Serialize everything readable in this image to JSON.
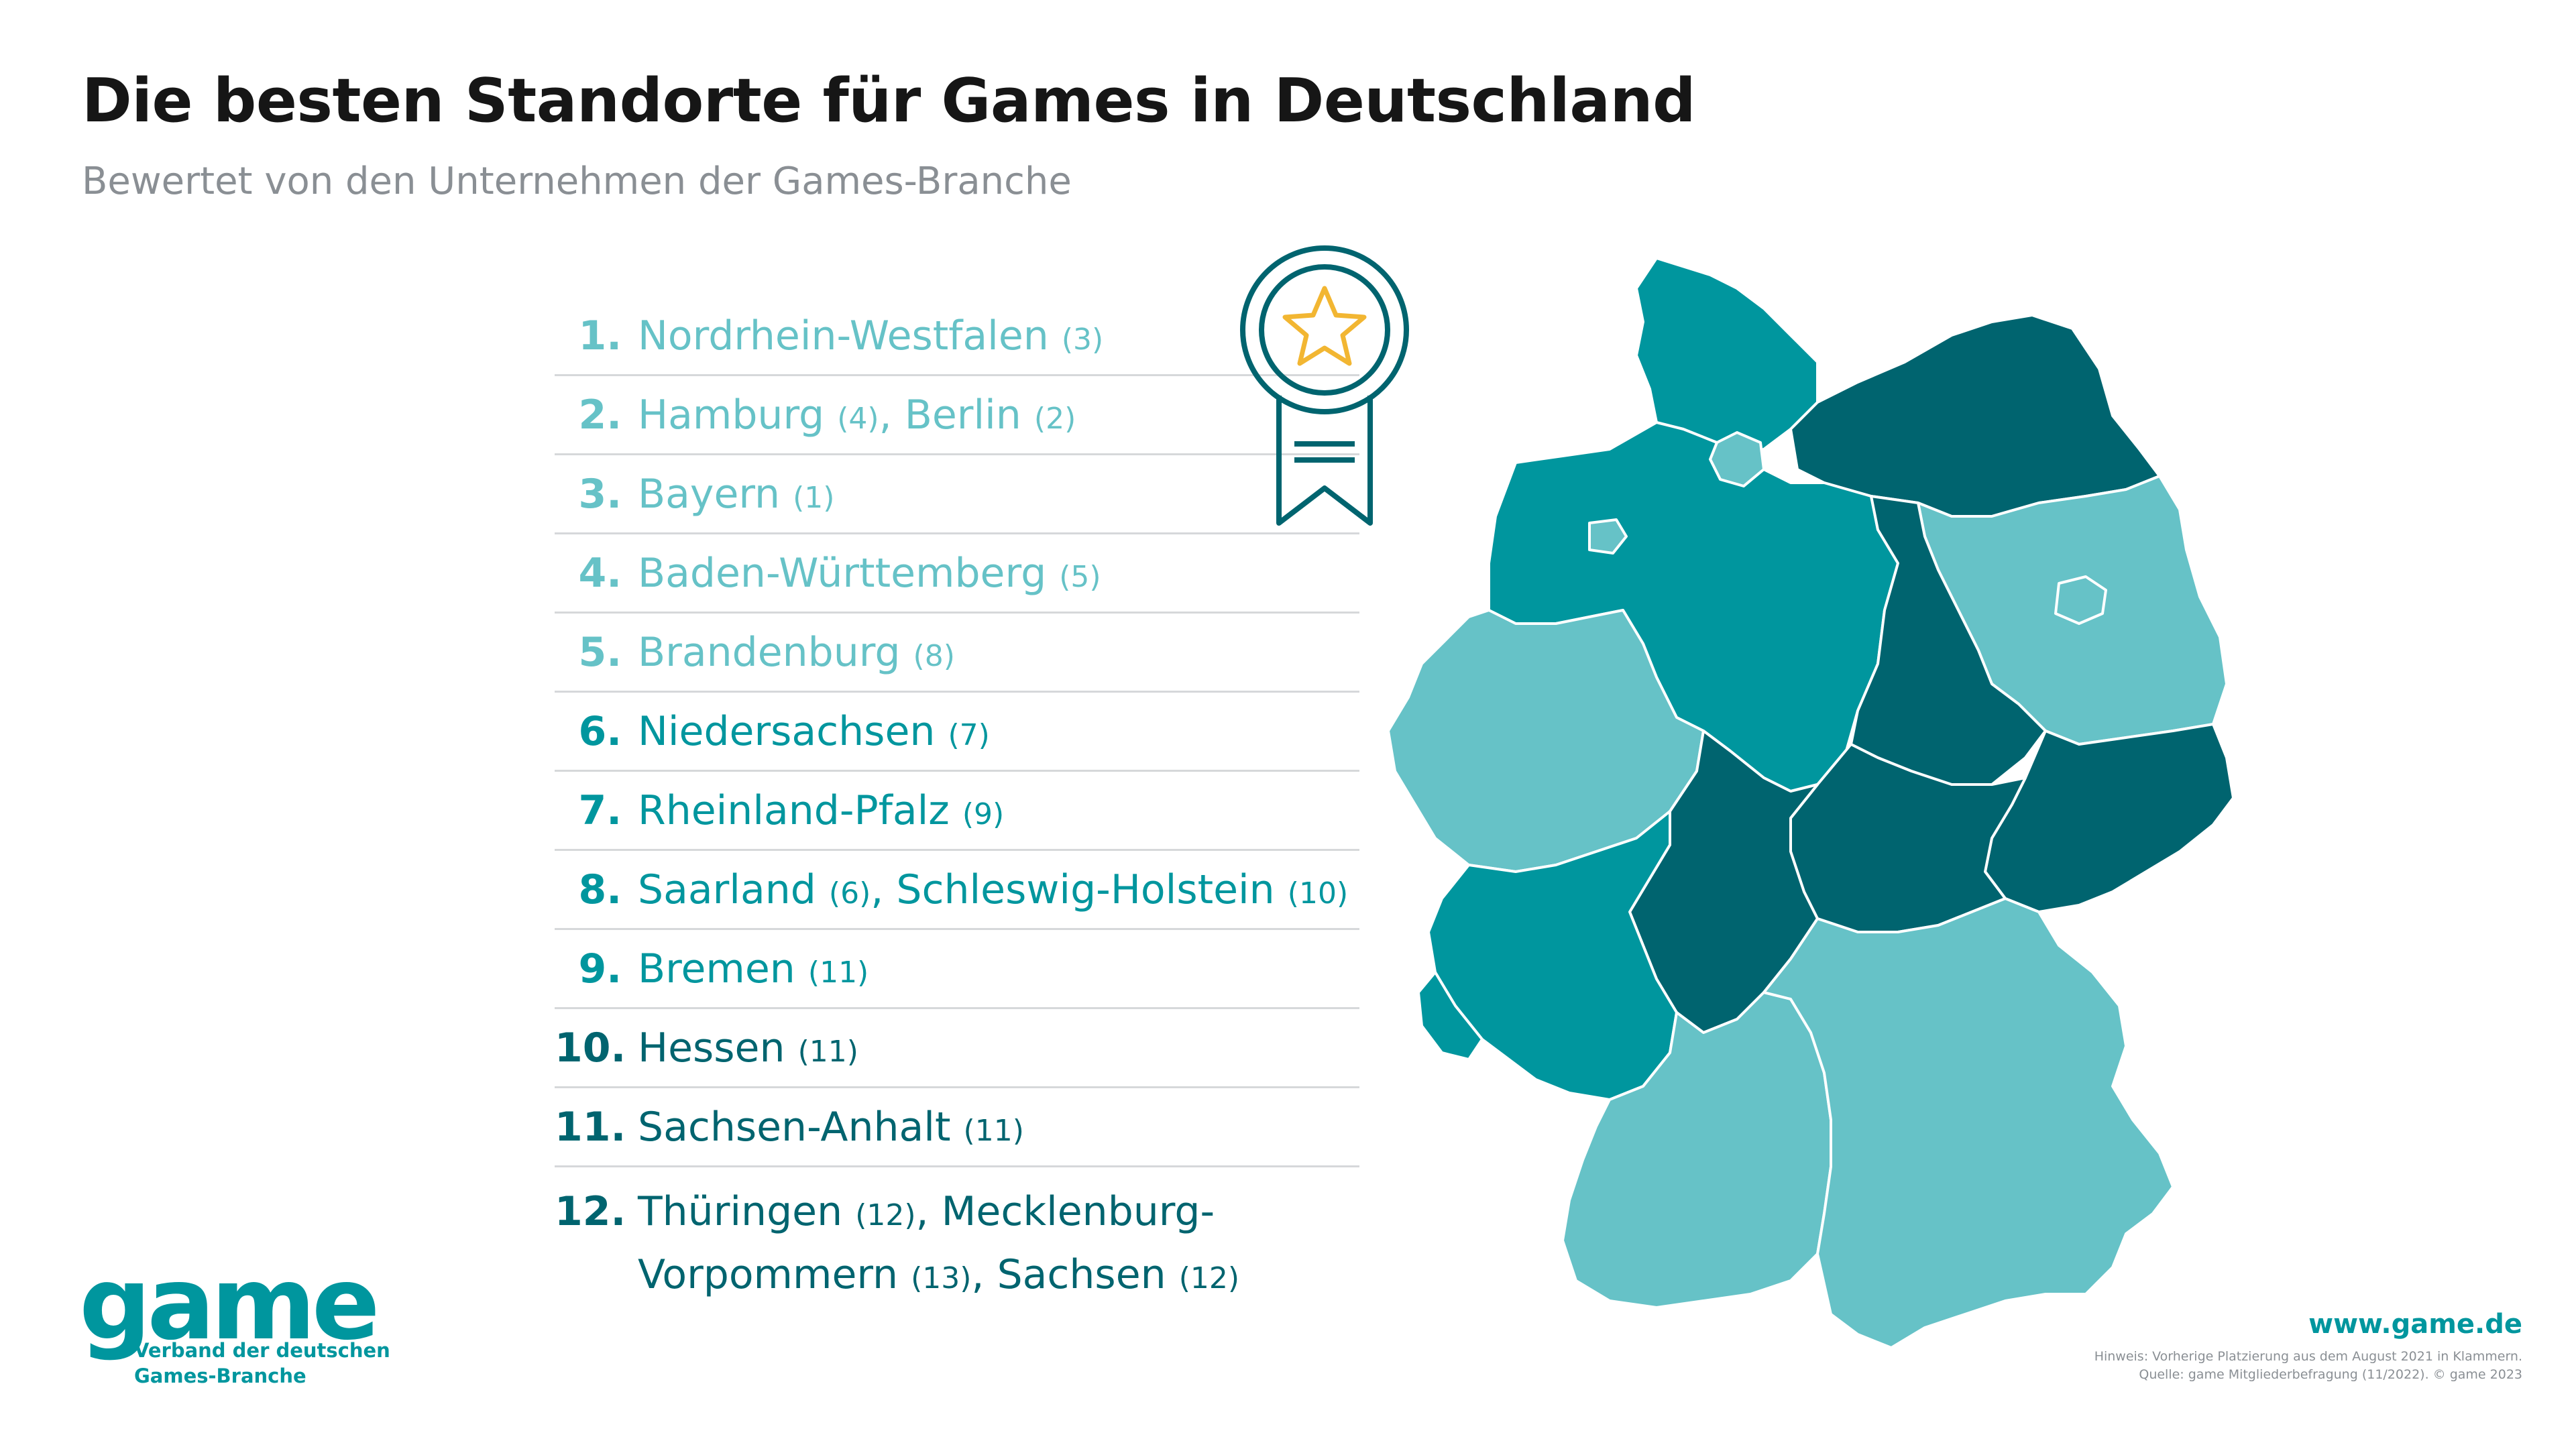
{
  "title": "Die besten Standorte für Games in Deutschland",
  "subtitle": "Bewertet von den Unternehmen der Games-Branche",
  "ranking": [
    {
      "rank": "1.",
      "text": "Nordrhein-Westfalen",
      "prev": "(3)"
    },
    {
      "rank": "2.",
      "text": "Hamburg",
      "prev": "(4)",
      "text2": ", Berlin",
      "prev2": "(2)"
    },
    {
      "rank": "3.",
      "text": "Bayern",
      "prev": "(1)"
    },
    {
      "rank": "4.",
      "text": "Baden-Württemberg",
      "prev": "(5)"
    },
    {
      "rank": "5.",
      "text": "Brandenburg",
      "prev": "(8)"
    },
    {
      "rank": "6.",
      "text": "Niedersachsen",
      "prev": "(7)"
    },
    {
      "rank": "7.",
      "text": "Rheinland-Pfalz",
      "prev": "(9)"
    },
    {
      "rank": "8.",
      "text": "Saarland",
      "prev": "(6)",
      "text2": ", Schleswig-Holstein",
      "prev2": "(10)"
    },
    {
      "rank": "9.",
      "text": "Bremen",
      "prev": "(11)"
    },
    {
      "rank": "10.",
      "text": "Hessen",
      "prev": "(11)"
    },
    {
      "rank": "11.",
      "text": "Sachsen-Anhalt",
      "prev": "(11)"
    },
    {
      "rank": "12.",
      "text": "Thüringen",
      "prev": "(12)",
      "text2": ", Mecklenburg-Vorpommern",
      "prev2": "(13)",
      "text3": ", Sachsen",
      "prev3": "(12)"
    }
  ],
  "colors": {
    "tier_light": "#66c2c7",
    "tier_medium": "#00969e",
    "tier_dark": "#00646f",
    "badge_star": "#f2b632"
  },
  "icons": [
    "award-ribbon-icon",
    "star-icon"
  ],
  "logo": {
    "word": "game",
    "line1": "Verband der deutschen",
    "line2": "Games-Branche"
  },
  "footer": {
    "url": "www.game.de",
    "note1": "Hinweis: Vorherige Platzierung aus dem August 2021 in Klammern.",
    "note2": "Quelle: game Mitgliederbefragung (11/2022). © game 2023"
  }
}
